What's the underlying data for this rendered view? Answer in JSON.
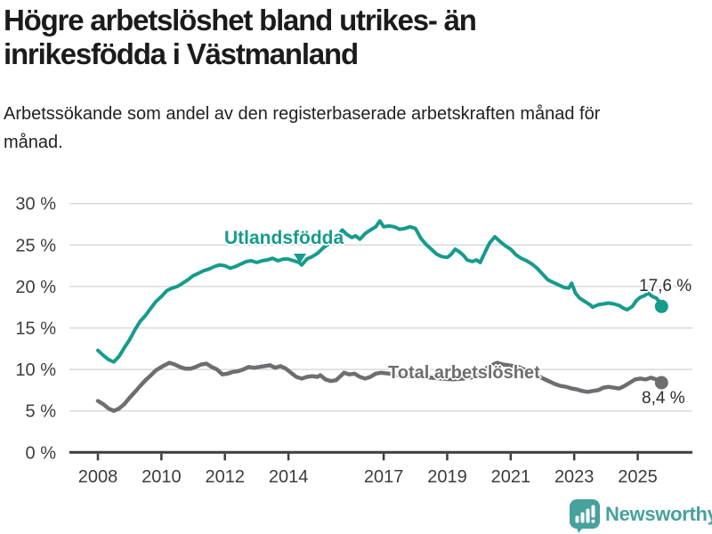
{
  "header": {
    "title": "Högre arbetslöshet bland utrikes- än inrikesfödda i Västmanland",
    "subtitle": "Arbetssökande som andel av den registerbaserade arbetskraften månad för månad."
  },
  "chart_data": {
    "type": "line",
    "title": "Högre arbetslöshet bland utrikes- än inrikesfödda i Västmanland",
    "subtitle": "Arbetssökande som andel av den registerbaserade arbetskraften månad för månad.",
    "unit": "%",
    "grid": true,
    "legend_position": "inline-labels",
    "x_axis": {
      "ticks": [
        2008,
        2010,
        2012,
        2014,
        2017,
        2019,
        2021,
        2023,
        2025
      ],
      "range": [
        2008,
        2025.78
      ]
    },
    "y_axis": {
      "ticks": [
        0,
        5,
        10,
        15,
        20,
        25,
        30
      ],
      "suffix": " %",
      "range": [
        0,
        30
      ]
    },
    "series": [
      {
        "name": "Utlandsfödda",
        "color": "#169b8d",
        "end_value": 17.6,
        "end_label": "17,6 %",
        "points": [
          [
            2008.0,
            12.3
          ],
          [
            2008.17,
            11.7
          ],
          [
            2008.33,
            11.2
          ],
          [
            2008.5,
            10.9
          ],
          [
            2008.67,
            11.6
          ],
          [
            2008.83,
            12.6
          ],
          [
            2009.0,
            13.6
          ],
          [
            2009.17,
            14.8
          ],
          [
            2009.33,
            15.8
          ],
          [
            2009.5,
            16.5
          ],
          [
            2009.67,
            17.4
          ],
          [
            2009.83,
            18.2
          ],
          [
            2010.0,
            18.8
          ],
          [
            2010.17,
            19.5
          ],
          [
            2010.33,
            19.8
          ],
          [
            2010.5,
            20.0
          ],
          [
            2010.67,
            20.4
          ],
          [
            2010.83,
            20.8
          ],
          [
            2011.0,
            21.3
          ],
          [
            2011.17,
            21.6
          ],
          [
            2011.33,
            21.9
          ],
          [
            2011.5,
            22.1
          ],
          [
            2011.67,
            22.4
          ],
          [
            2011.83,
            22.6
          ],
          [
            2012.0,
            22.5
          ],
          [
            2012.17,
            22.2
          ],
          [
            2012.33,
            22.4
          ],
          [
            2012.5,
            22.7
          ],
          [
            2012.67,
            23.0
          ],
          [
            2012.83,
            23.1
          ],
          [
            2013.0,
            22.9
          ],
          [
            2013.17,
            23.1
          ],
          [
            2013.33,
            23.2
          ],
          [
            2013.5,
            23.4
          ],
          [
            2013.67,
            23.1
          ],
          [
            2013.83,
            23.3
          ],
          [
            2014.0,
            23.3
          ],
          [
            2014.17,
            23.1
          ],
          [
            2014.33,
            22.9
          ],
          [
            2014.42,
            22.6
          ],
          [
            2014.58,
            23.3
          ],
          [
            2014.75,
            23.6
          ],
          [
            2014.92,
            24.0
          ],
          [
            2015.08,
            24.6
          ],
          [
            2015.25,
            25.1
          ],
          [
            2015.42,
            25.7
          ],
          [
            2015.58,
            26.3
          ],
          [
            2015.7,
            26.8
          ],
          [
            2015.83,
            26.3
          ],
          [
            2016.0,
            25.9
          ],
          [
            2016.12,
            26.1
          ],
          [
            2016.25,
            25.7
          ],
          [
            2016.42,
            26.4
          ],
          [
            2016.58,
            26.8
          ],
          [
            2016.75,
            27.2
          ],
          [
            2016.88,
            27.9
          ],
          [
            2017.0,
            27.2
          ],
          [
            2017.17,
            27.3
          ],
          [
            2017.33,
            27.2
          ],
          [
            2017.5,
            26.9
          ],
          [
            2017.67,
            27.0
          ],
          [
            2017.83,
            27.2
          ],
          [
            2018.0,
            27.0
          ],
          [
            2018.17,
            25.8
          ],
          [
            2018.33,
            25.1
          ],
          [
            2018.5,
            24.5
          ],
          [
            2018.67,
            23.9
          ],
          [
            2018.83,
            23.6
          ],
          [
            2019.0,
            23.5
          ],
          [
            2019.13,
            23.9
          ],
          [
            2019.25,
            24.5
          ],
          [
            2019.38,
            24.2
          ],
          [
            2019.5,
            23.8
          ],
          [
            2019.63,
            23.2
          ],
          [
            2019.79,
            23.0
          ],
          [
            2019.92,
            23.2
          ],
          [
            2020.04,
            22.9
          ],
          [
            2020.21,
            24.3
          ],
          [
            2020.33,
            25.2
          ],
          [
            2020.5,
            26.0
          ],
          [
            2020.67,
            25.4
          ],
          [
            2020.83,
            24.9
          ],
          [
            2021.0,
            24.5
          ],
          [
            2021.17,
            23.8
          ],
          [
            2021.33,
            23.4
          ],
          [
            2021.5,
            23.1
          ],
          [
            2021.67,
            22.7
          ],
          [
            2021.83,
            22.2
          ],
          [
            2022.0,
            21.5
          ],
          [
            2022.17,
            20.8
          ],
          [
            2022.33,
            20.5
          ],
          [
            2022.5,
            20.2
          ],
          [
            2022.67,
            19.9
          ],
          [
            2022.83,
            19.8
          ],
          [
            2022.92,
            20.4
          ],
          [
            2023.04,
            19.2
          ],
          [
            2023.17,
            18.6
          ],
          [
            2023.33,
            18.2
          ],
          [
            2023.5,
            17.8
          ],
          [
            2023.58,
            17.5
          ],
          [
            2023.75,
            17.8
          ],
          [
            2023.92,
            17.9
          ],
          [
            2024.08,
            18.0
          ],
          [
            2024.25,
            17.9
          ],
          [
            2024.42,
            17.7
          ],
          [
            2024.54,
            17.4
          ],
          [
            2024.67,
            17.2
          ],
          [
            2024.83,
            17.6
          ],
          [
            2024.96,
            18.3
          ],
          [
            2025.08,
            18.7
          ],
          [
            2025.21,
            18.9
          ],
          [
            2025.33,
            19.2
          ],
          [
            2025.46,
            18.8
          ],
          [
            2025.58,
            18.6
          ],
          [
            2025.67,
            18.2
          ],
          [
            2025.75,
            17.6
          ]
        ]
      },
      {
        "name": "Total arbetslöshet",
        "color": "#6d6e71",
        "end_value": 8.4,
        "end_label": "8,4 %",
        "points": [
          [
            2008.0,
            6.2
          ],
          [
            2008.17,
            5.8
          ],
          [
            2008.33,
            5.3
          ],
          [
            2008.5,
            5.0
          ],
          [
            2008.67,
            5.3
          ],
          [
            2008.83,
            5.8
          ],
          [
            2009.0,
            6.6
          ],
          [
            2009.17,
            7.3
          ],
          [
            2009.33,
            8.0
          ],
          [
            2009.5,
            8.7
          ],
          [
            2009.67,
            9.3
          ],
          [
            2009.83,
            9.9
          ],
          [
            2010.0,
            10.3
          ],
          [
            2010.25,
            10.8
          ],
          [
            2010.42,
            10.6
          ],
          [
            2010.58,
            10.3
          ],
          [
            2010.75,
            10.1
          ],
          [
            2010.92,
            10.1
          ],
          [
            2011.08,
            10.3
          ],
          [
            2011.25,
            10.6
          ],
          [
            2011.42,
            10.7
          ],
          [
            2011.58,
            10.3
          ],
          [
            2011.75,
            10.0
          ],
          [
            2011.92,
            9.4
          ],
          [
            2012.08,
            9.5
          ],
          [
            2012.25,
            9.7
          ],
          [
            2012.42,
            9.8
          ],
          [
            2012.58,
            10.0
          ],
          [
            2012.75,
            10.3
          ],
          [
            2012.92,
            10.2
          ],
          [
            2013.08,
            10.3
          ],
          [
            2013.25,
            10.4
          ],
          [
            2013.42,
            10.5
          ],
          [
            2013.58,
            10.2
          ],
          [
            2013.75,
            10.4
          ],
          [
            2013.92,
            10.1
          ],
          [
            2014.08,
            9.6
          ],
          [
            2014.25,
            9.1
          ],
          [
            2014.42,
            8.9
          ],
          [
            2014.58,
            9.1
          ],
          [
            2014.75,
            9.2
          ],
          [
            2014.92,
            9.1
          ],
          [
            2015.0,
            9.3
          ],
          [
            2015.17,
            8.8
          ],
          [
            2015.33,
            8.6
          ],
          [
            2015.5,
            8.7
          ],
          [
            2015.67,
            9.3
          ],
          [
            2015.75,
            9.6
          ],
          [
            2015.92,
            9.4
          ],
          [
            2016.08,
            9.5
          ],
          [
            2016.25,
            9.1
          ],
          [
            2016.42,
            8.9
          ],
          [
            2016.58,
            9.1
          ],
          [
            2016.75,
            9.5
          ],
          [
            2016.92,
            9.6
          ],
          [
            2017.17,
            9.5
          ],
          [
            2017.5,
            9.3
          ],
          [
            2017.83,
            9.2
          ],
          [
            2018.17,
            9.1
          ],
          [
            2018.5,
            9.0
          ],
          [
            2018.83,
            8.9
          ],
          [
            2019.17,
            8.8
          ],
          [
            2019.5,
            8.9
          ],
          [
            2019.83,
            9.1
          ],
          [
            2020.08,
            9.6
          ],
          [
            2020.25,
            10.2
          ],
          [
            2020.5,
            10.7
          ],
          [
            2020.58,
            10.8
          ],
          [
            2020.75,
            10.6
          ],
          [
            2020.92,
            10.5
          ],
          [
            2021.08,
            10.4
          ],
          [
            2021.25,
            10.3
          ],
          [
            2021.42,
            10.0
          ],
          [
            2021.58,
            9.7
          ],
          [
            2021.75,
            9.4
          ],
          [
            2021.92,
            9.1
          ],
          [
            2022.08,
            8.8
          ],
          [
            2022.25,
            8.5
          ],
          [
            2022.42,
            8.2
          ],
          [
            2022.58,
            8.0
          ],
          [
            2022.75,
            7.9
          ],
          [
            2022.92,
            7.7
          ],
          [
            2023.08,
            7.6
          ],
          [
            2023.25,
            7.4
          ],
          [
            2023.42,
            7.3
          ],
          [
            2023.58,
            7.4
          ],
          [
            2023.75,
            7.5
          ],
          [
            2023.92,
            7.8
          ],
          [
            2024.08,
            7.9
          ],
          [
            2024.25,
            7.8
          ],
          [
            2024.42,
            7.7
          ],
          [
            2024.58,
            8.0
          ],
          [
            2024.75,
            8.4
          ],
          [
            2024.92,
            8.8
          ],
          [
            2025.08,
            8.9
          ],
          [
            2025.25,
            8.8
          ],
          [
            2025.42,
            9.0
          ],
          [
            2025.58,
            8.8
          ],
          [
            2025.75,
            8.4
          ]
        ]
      }
    ]
  },
  "footer": {
    "brand": "Newsworthy",
    "logo_color": "#47a19c"
  }
}
